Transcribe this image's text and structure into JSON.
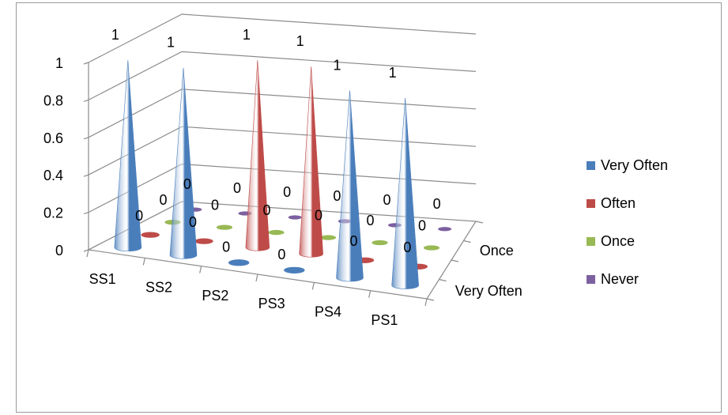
{
  "chart_data": {
    "type": "bar",
    "style": "3d-cone",
    "categories": [
      "SS1",
      "SS2",
      "PS2",
      "PS3",
      "PS4",
      "PS1"
    ],
    "depth_categories": [
      "Very Often",
      "Once"
    ],
    "series": [
      {
        "name": "Very Often",
        "color": "#4A7EBB",
        "values": [
          1,
          1,
          0,
          0,
          1,
          1
        ]
      },
      {
        "name": "Often",
        "color": "#BE4B48",
        "values": [
          0,
          0,
          1,
          1,
          0,
          0
        ]
      },
      {
        "name": "Once",
        "color": "#98B954",
        "values": [
          0,
          0,
          0,
          0,
          0,
          0
        ]
      },
      {
        "name": "Never",
        "color": "#7D60A0",
        "values": [
          0,
          0,
          0,
          0,
          0,
          0
        ]
      }
    ],
    "y_ticks": [
      "0",
      "0.2",
      "0.4",
      "0.6",
      "0.8",
      "1"
    ],
    "ylim": [
      0,
      1
    ],
    "grid": true,
    "legend_position": "right"
  }
}
